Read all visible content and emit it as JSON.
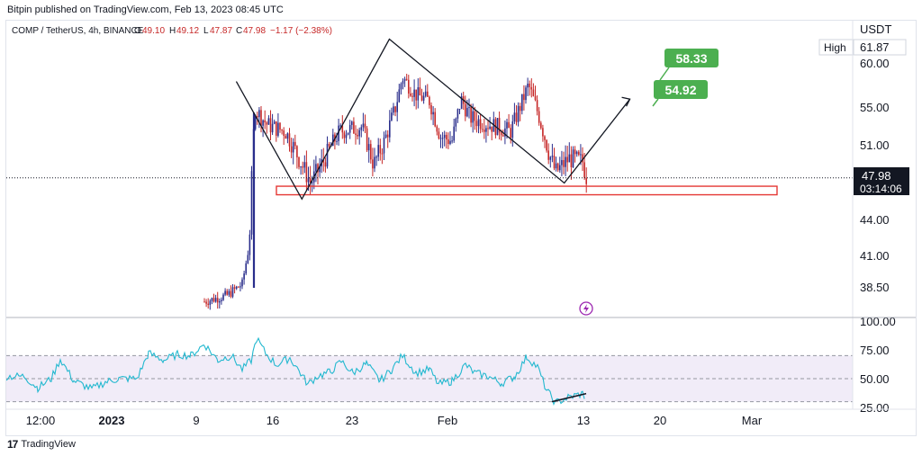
{
  "publisher": "Bitpin published on TradingView.com, Feb 13, 2023 08:45 UTC",
  "footer": {
    "brand": "TradingView",
    "brand_mark": "17"
  },
  "legend": {
    "symbol": "COMP / TetherUS, 4h, BINANCE",
    "open_label": "O",
    "open": "49.10",
    "high_label": "H",
    "high": "49.12",
    "low_label": "L",
    "low": "47.87",
    "close_label": "C",
    "close": "47.98",
    "change": "−1.17 (−2.38%)"
  },
  "colors": {
    "up": "#2a2e8c",
    "down": "#c62828",
    "rsi": "#22b8cf",
    "frame": "#b2b5be",
    "target_bg": "#4caf50",
    "last_bg": "#131722",
    "zone": "#e53935",
    "path": "#131722"
  },
  "chart_data": {
    "type": "candlestick",
    "price_axis": {
      "unit": "USDT",
      "ticks": [
        "60.00",
        "55.00",
        "51.00",
        "44.00",
        "41.00",
        "38.50"
      ]
    },
    "high_label": "High",
    "high_value": "61.87",
    "last_price": "47.98",
    "countdown": "03:14:06",
    "targets": [
      "58.33",
      "54.92"
    ],
    "support_zone": [
      46.4,
      47.2
    ],
    "pattern_path": [
      {
        "date": "2023-01-12",
        "price": 58.0
      },
      {
        "date": "2023-01-18",
        "price": 46.0
      },
      {
        "date": "2023-01-26",
        "price": 62.8
      },
      {
        "date": "2023-02-11",
        "price": 47.5
      },
      {
        "date": "2023-02-17",
        "price": 56.0
      }
    ],
    "rsi": {
      "ticks": [
        "100.00",
        "75.00",
        "50.00",
        "25.00"
      ],
      "upper": 70,
      "middle": 50,
      "lower": 30
    },
    "time_axis": [
      "12:00",
      "2023",
      "9",
      "16",
      "23",
      "Feb",
      "13",
      "20",
      "Mar"
    ]
  }
}
